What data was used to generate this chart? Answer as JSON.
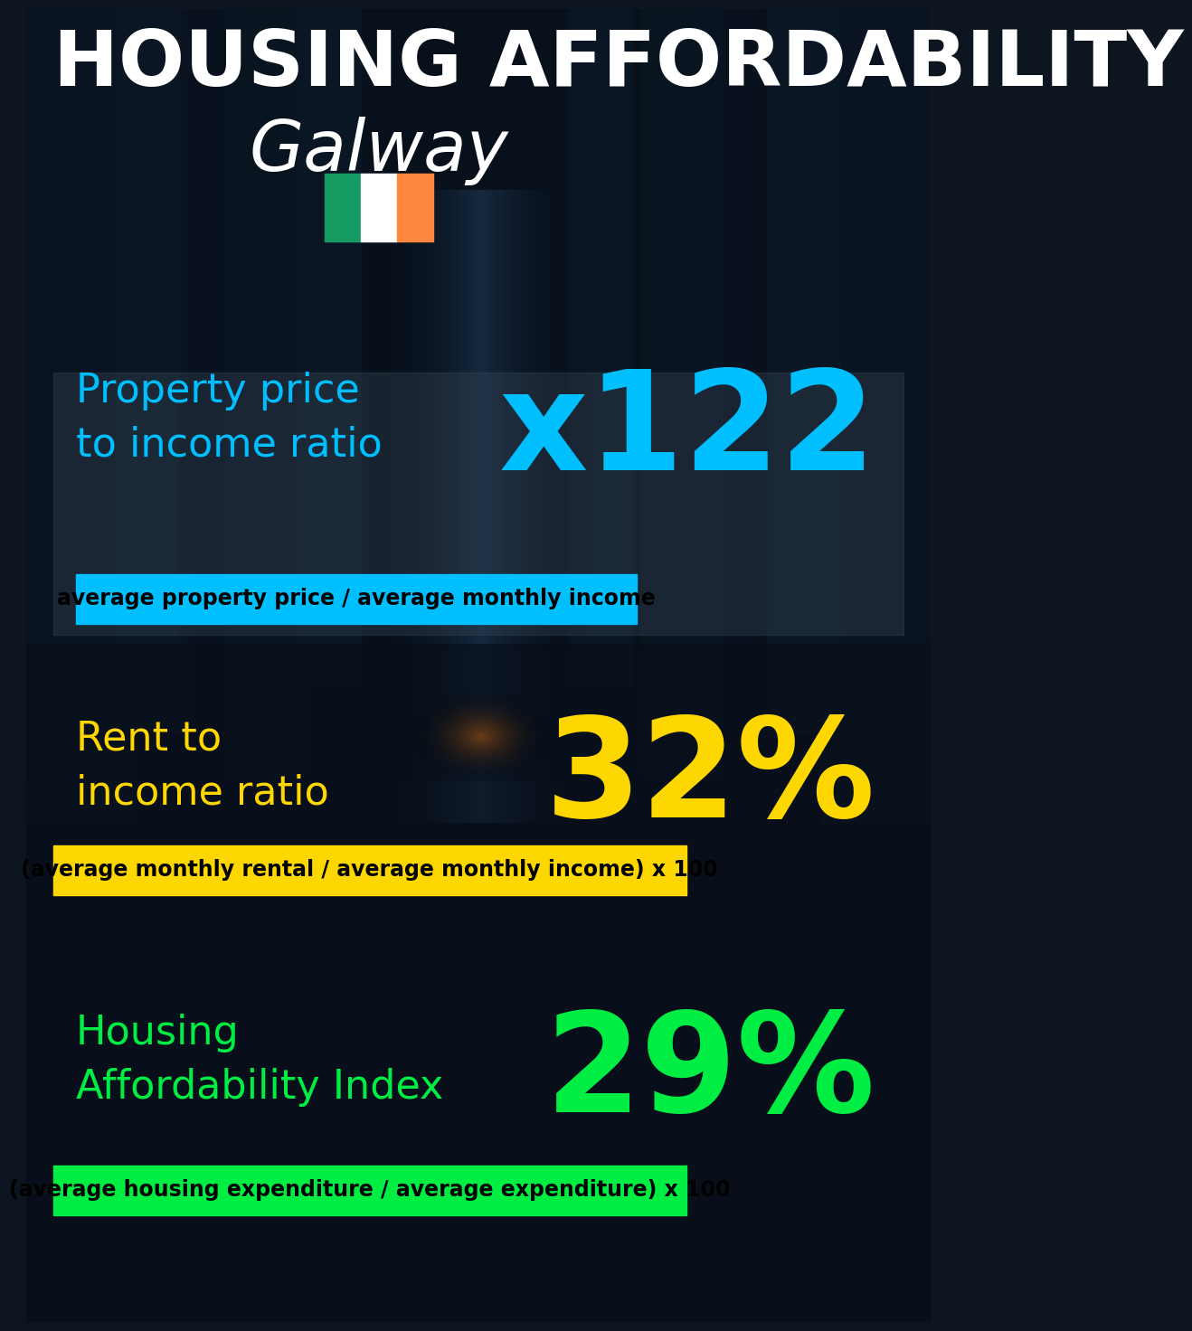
{
  "title_line1": "HOUSING AFFORDABILITY",
  "title_line2": "Galway",
  "bg_color": "#0d1520",
  "section1_label": "Property price\nto income ratio",
  "section1_value": "x122",
  "section1_label_color": "#00bfff",
  "section1_value_color": "#00bfff",
  "section1_formula": "average property price / average monthly income",
  "section1_formula_bg": "#00bfff",
  "section2_label": "Rent to\nincome ratio",
  "section2_value": "32%",
  "section2_label_color": "#ffd700",
  "section2_value_color": "#ffd700",
  "section2_formula": "(average monthly rental / average monthly income) x 100",
  "section2_formula_bg": "#ffd700",
  "section3_label": "Housing\nAffordability Index",
  "section3_value": "29%",
  "section3_label_color": "#00ee44",
  "section3_value_color": "#00ee44",
  "section3_formula": "(average housing expenditure / average expenditure) x 100",
  "section3_formula_bg": "#00ee44",
  "title_color": "#ffffff",
  "formula_text_color": "#000000",
  "flag_green": "#169b62",
  "flag_white": "#ffffff",
  "flag_orange": "#ff883e"
}
